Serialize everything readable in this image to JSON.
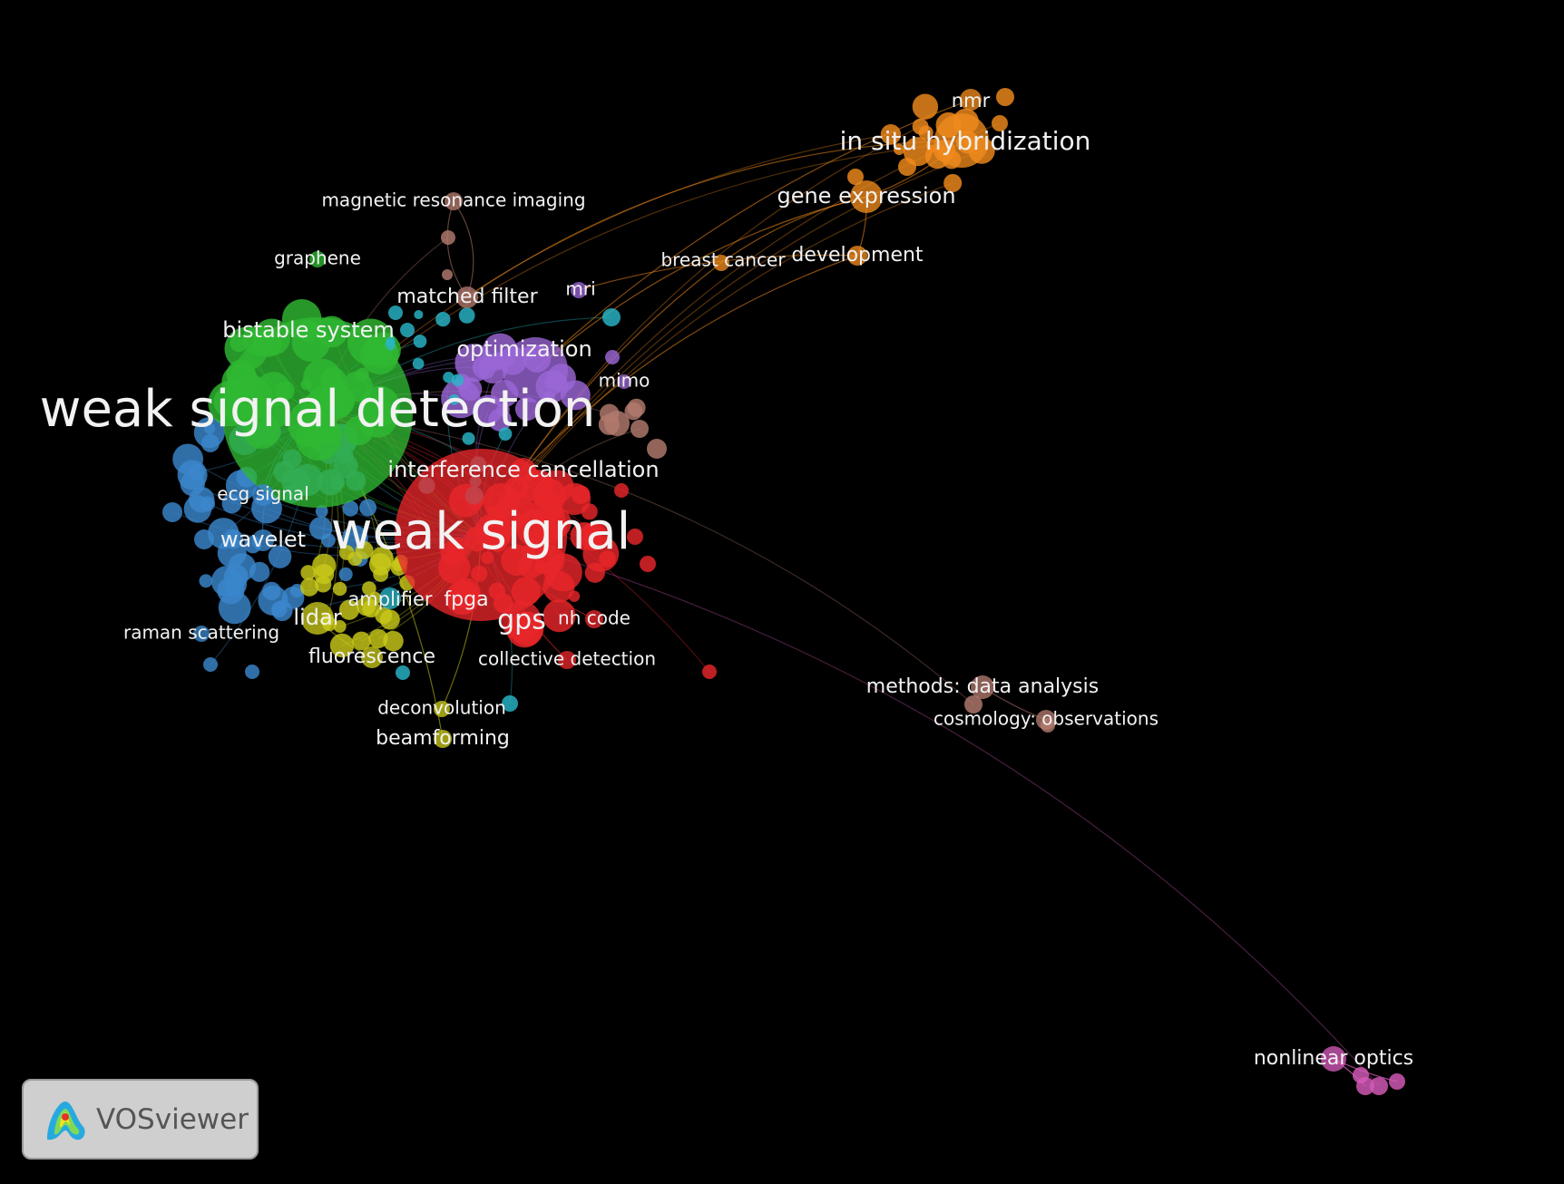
{
  "app": {
    "name": "VOSviewer"
  },
  "colors": {
    "red": "#e8262a",
    "green": "#2fb832",
    "blue": "#3a86cc",
    "yellow": "#c8c81a",
    "purple": "#9a66d6",
    "cyan": "#29b6c8",
    "orange": "#f08a1c",
    "brown": "#b27a6e",
    "pink": "#d45ab8"
  },
  "terms": [
    {
      "id": "weak-signal-detection",
      "label": "weak signal detection",
      "cluster": "green"
    },
    {
      "id": "weak-signal",
      "label": "weak signal",
      "cluster": "red"
    },
    {
      "id": "in-situ-hybridization",
      "label": "in situ hybridization",
      "cluster": "orange"
    },
    {
      "id": "nmr",
      "label": "nmr",
      "cluster": "orange"
    },
    {
      "id": "gene-expression",
      "label": "gene expression",
      "cluster": "orange"
    },
    {
      "id": "development",
      "label": "development",
      "cluster": "orange"
    },
    {
      "id": "breast-cancer",
      "label": "breast cancer",
      "cluster": "orange"
    },
    {
      "id": "magnetic-resonance-imaging",
      "label": "magnetic resonance imaging",
      "cluster": "brown"
    },
    {
      "id": "graphene",
      "label": "graphene",
      "cluster": "green"
    },
    {
      "id": "matched-filter",
      "label": "matched filter",
      "cluster": "brown"
    },
    {
      "id": "mri",
      "label": "mri",
      "cluster": "purple"
    },
    {
      "id": "bistable-system",
      "label": "bistable system",
      "cluster": "green"
    },
    {
      "id": "optimization",
      "label": "optimization",
      "cluster": "purple"
    },
    {
      "id": "mimo",
      "label": "mimo",
      "cluster": "purple"
    },
    {
      "id": "interference-cancellation",
      "label": "interference cancellation",
      "cluster": "red"
    },
    {
      "id": "ecg-signal",
      "label": "ecg signal",
      "cluster": "blue"
    },
    {
      "id": "wavelet",
      "label": "wavelet",
      "cluster": "blue"
    },
    {
      "id": "raman-scattering",
      "label": "raman scattering",
      "cluster": "blue"
    },
    {
      "id": "lidar",
      "label": "lidar",
      "cluster": "yellow"
    },
    {
      "id": "amplifier",
      "label": "amplifier",
      "cluster": "cyan"
    },
    {
      "id": "fpga",
      "label": "fpga",
      "cluster": "red"
    },
    {
      "id": "gps",
      "label": "gps",
      "cluster": "red"
    },
    {
      "id": "nh-code",
      "label": "nh code",
      "cluster": "red"
    },
    {
      "id": "fluorescence",
      "label": "fluorescence",
      "cluster": "yellow"
    },
    {
      "id": "collective-detection",
      "label": "collective detection",
      "cluster": "red"
    },
    {
      "id": "deconvolution",
      "label": "deconvolution",
      "cluster": "yellow"
    },
    {
      "id": "beamforming",
      "label": "beamforming",
      "cluster": "yellow"
    },
    {
      "id": "methods-data-analysis",
      "label": "methods: data analysis",
      "cluster": "brown"
    },
    {
      "id": "cosmology-observations",
      "label": "cosmology: observations",
      "cluster": "brown"
    },
    {
      "id": "nonlinear-optics",
      "label": "nonlinear optics",
      "cluster": "pink"
    }
  ]
}
